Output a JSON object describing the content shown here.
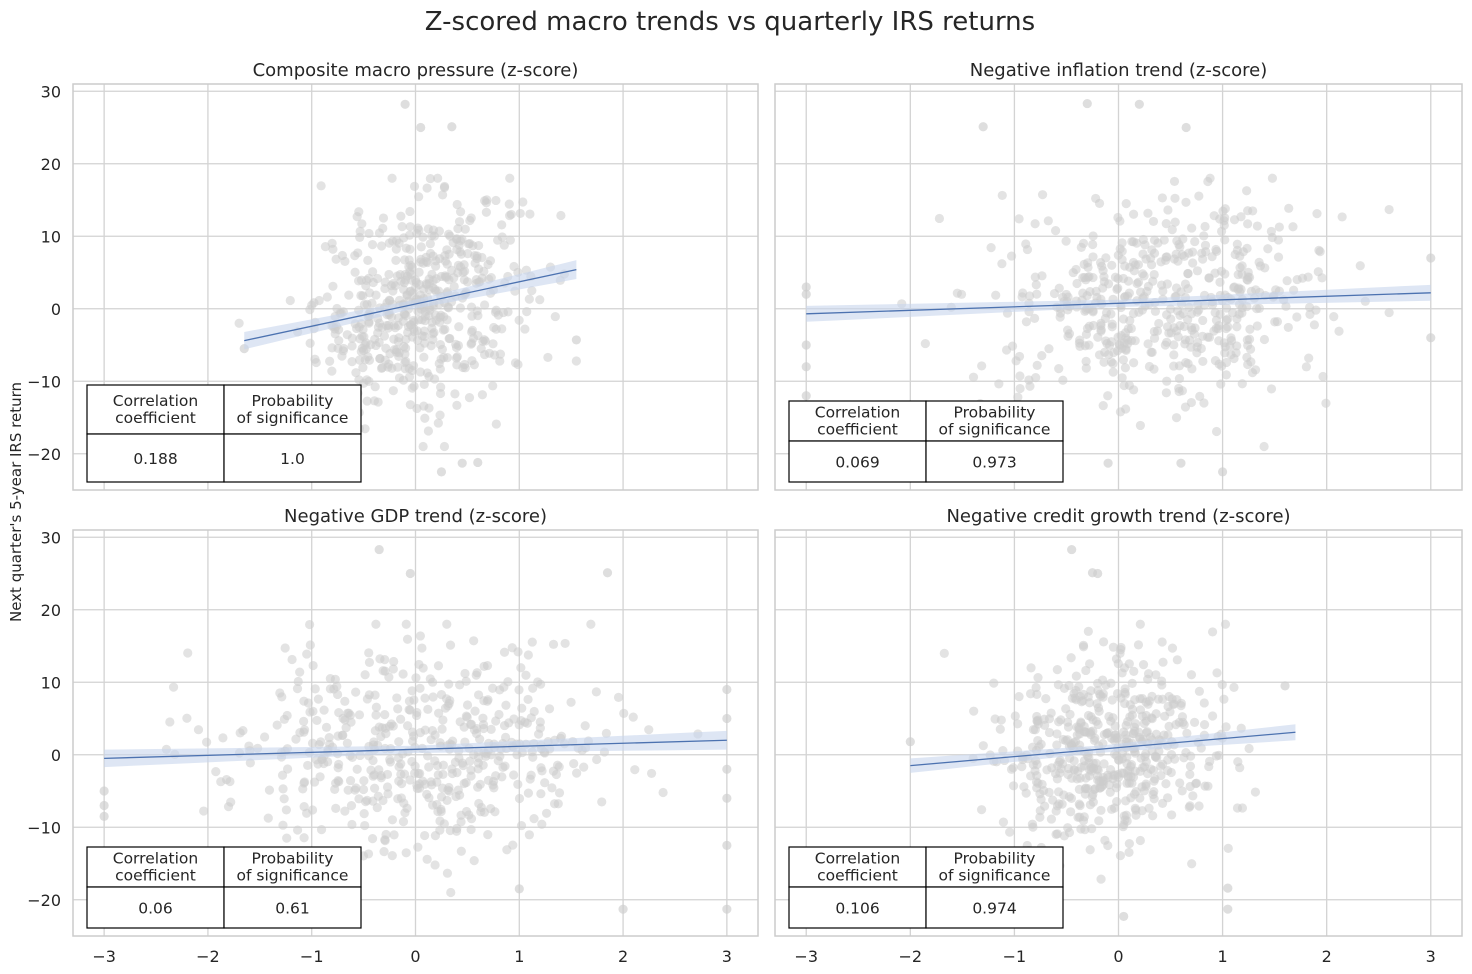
{
  "figure": {
    "suptitle": "Z-scored macro trends vs quarterly IRS returns",
    "shared_ylabel": "Next quarter's 5-year IRS return",
    "colors": {
      "point": "#cccccc",
      "line": "#4c72b0",
      "band": "#c8d6ec",
      "grid": "#d3d3d3",
      "spine": "#cccccc"
    }
  },
  "chart_data": [
    {
      "type": "scatter",
      "title": "Composite macro pressure (z-score)",
      "xlim": [
        -3.3,
        3.3
      ],
      "ylim": [
        -25,
        31
      ],
      "xticks": [
        -3,
        -2,
        -1,
        0,
        1,
        2,
        3
      ],
      "yticks": [
        -20,
        -10,
        0,
        10,
        20,
        30
      ],
      "x_tick_labels_shown": false,
      "y_tick_labels_shown": true,
      "grid": true,
      "cloud": {
        "x_range": [
          -1.7,
          1.6
        ],
        "x_center": 0.05,
        "x_sd": 0.5,
        "y_center": 0.5,
        "y_sd": 7,
        "n": 520
      },
      "outliers": [
        [
          -0.1,
          28.2
        ],
        [
          0.05,
          25
        ],
        [
          0.35,
          25.1
        ],
        [
          0.25,
          -22.5
        ],
        [
          0.45,
          -21.3
        ],
        [
          0.6,
          -21.2
        ],
        [
          1.55,
          -4.3
        ],
        [
          -1.65,
          -5.5
        ]
      ],
      "regression": {
        "x": [
          -1.65,
          1.55
        ],
        "y": [
          -4.4,
          5.4
        ],
        "band_halfwidth": [
          1.2,
          0.6,
          1.3
        ]
      },
      "stats_table": {
        "headers": [
          "Correlation\ncoefficient",
          "Probability\nof significance"
        ],
        "values": [
          "0.188",
          "1.0"
        ],
        "position": "lower-left"
      }
    },
    {
      "type": "scatter",
      "title": "Negative inflation trend (z-score)",
      "xlim": [
        -3.3,
        3.3
      ],
      "ylim": [
        -25,
        31
      ],
      "xticks": [
        -3,
        -2,
        -1,
        0,
        1,
        2,
        3
      ],
      "yticks": [
        -20,
        -10,
        0,
        10,
        20,
        30
      ],
      "x_tick_labels_shown": false,
      "y_tick_labels_shown": false,
      "grid": true,
      "cloud": {
        "x_range": [
          -2.2,
          2.6
        ],
        "x_center": 0.4,
        "x_sd": 0.8,
        "y_center": 0.5,
        "y_sd": 7,
        "n": 520
      },
      "outliers": [
        [
          -0.3,
          28.3
        ],
        [
          0.2,
          28.2
        ],
        [
          0.65,
          25
        ],
        [
          -1.3,
          25.1
        ],
        [
          -3,
          3
        ],
        [
          -3,
          -5
        ],
        [
          -3,
          -12
        ],
        [
          -3,
          2
        ],
        [
          -3,
          -8
        ],
        [
          3,
          7
        ],
        [
          3,
          -4
        ],
        [
          1.0,
          -22.5
        ],
        [
          -0.1,
          -21.3
        ],
        [
          0.6,
          -21.3
        ]
      ],
      "regression": {
        "x": [
          -3,
          3
        ],
        "y": [
          -0.7,
          2.2
        ],
        "band_halfwidth": [
          1.1,
          0.5,
          1.1
        ]
      },
      "stats_table": {
        "headers": [
          "Correlation\ncoefficient",
          "Probability\nof significance"
        ],
        "values": [
          "0.069",
          "0.973"
        ],
        "position": "lower-left"
      }
    },
    {
      "type": "scatter",
      "title": "Negative GDP trend (z-score)",
      "xlim": [
        -3.3,
        3.3
      ],
      "ylim": [
        -25,
        31
      ],
      "xticks": [
        -3,
        -2,
        -1,
        0,
        1,
        2,
        3
      ],
      "yticks": [
        -20,
        -10,
        0,
        10,
        20,
        30
      ],
      "x_tick_labels_shown": true,
      "y_tick_labels_shown": true,
      "grid": true,
      "cloud": {
        "x_range": [
          -2.4,
          2.8
        ],
        "x_center": 0.1,
        "x_sd": 0.9,
        "y_center": 0.5,
        "y_sd": 7,
        "n": 520
      },
      "outliers": [
        [
          -0.35,
          28.3
        ],
        [
          -0.05,
          25
        ],
        [
          1.85,
          25.1
        ],
        [
          -3,
          -5
        ],
        [
          -3,
          -7
        ],
        [
          -3,
          -8.5
        ],
        [
          3,
          9
        ],
        [
          3,
          5
        ],
        [
          3,
          -2
        ],
        [
          3,
          -6
        ],
        [
          3,
          -12.5
        ],
        [
          3,
          -21.3
        ],
        [
          2.0,
          -21.3
        ],
        [
          1.0,
          -18.5
        ]
      ],
      "regression": {
        "x": [
          -3,
          3
        ],
        "y": [
          -0.5,
          2.0
        ],
        "band_halfwidth": [
          1.2,
          0.5,
          1.3
        ]
      },
      "stats_table": {
        "headers": [
          "Correlation\ncoefficient",
          "Probability\nof significance"
        ],
        "values": [
          "0.06",
          "0.61"
        ],
        "position": "lower-left"
      }
    },
    {
      "type": "scatter",
      "title": "Negative credit growth trend (z-score)",
      "xlim": [
        -3.3,
        3.3
      ],
      "ylim": [
        -25,
        31
      ],
      "xticks": [
        -3,
        -2,
        -1,
        0,
        1,
        2,
        3
      ],
      "yticks": [
        -20,
        -10,
        0,
        10,
        20,
        30
      ],
      "x_tick_labels_shown": true,
      "y_tick_labels_shown": false,
      "grid": true,
      "cloud": {
        "x_range": [
          -2.0,
          1.7
        ],
        "x_center": -0.1,
        "x_sd": 0.55,
        "y_center": 0.5,
        "y_sd": 7,
        "n": 520
      },
      "outliers": [
        [
          -0.45,
          28.3
        ],
        [
          -0.25,
          25.1
        ],
        [
          -0.2,
          25
        ],
        [
          0.05,
          -22.3
        ],
        [
          1.05,
          -21.3
        ],
        [
          1.05,
          -18.4
        ],
        [
          1.6,
          9.5
        ],
        [
          -2.0,
          1.8
        ]
      ],
      "regression": {
        "x": [
          -2.0,
          1.7
        ],
        "y": [
          -1.5,
          3.1
        ],
        "band_halfwidth": [
          1.0,
          0.5,
          1.1
        ]
      },
      "stats_table": {
        "headers": [
          "Correlation\ncoefficient",
          "Probability\nof significance"
        ],
        "values": [
          "0.106",
          "0.974"
        ],
        "position": "lower-left"
      }
    }
  ]
}
